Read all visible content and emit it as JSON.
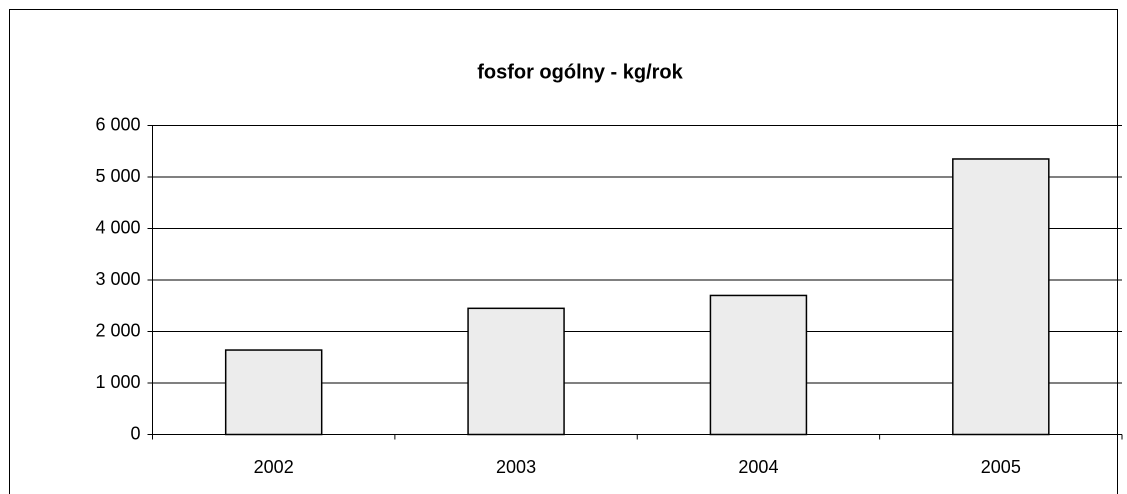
{
  "chart_data": {
    "type": "bar",
    "title": "fosfor ogólny - kg/rok",
    "categories": [
      "2002",
      "2003",
      "2004",
      "2005"
    ],
    "values": [
      1640,
      2450,
      2700,
      5350
    ],
    "color": "#ececec",
    "ylim": [
      0,
      6000
    ],
    "yticks": [
      0,
      {
        "value": 1000,
        "label": "1 000"
      },
      {
        "value": 2000,
        "label": "2 000"
      },
      {
        "value": 3000,
        "label": "3 000"
      },
      {
        "value": 4000,
        "label": "4 000"
      },
      {
        "value": 5000,
        "label": "5 000"
      },
      {
        "value": 6000,
        "label": "6 000"
      }
    ],
    "grid": true
  }
}
